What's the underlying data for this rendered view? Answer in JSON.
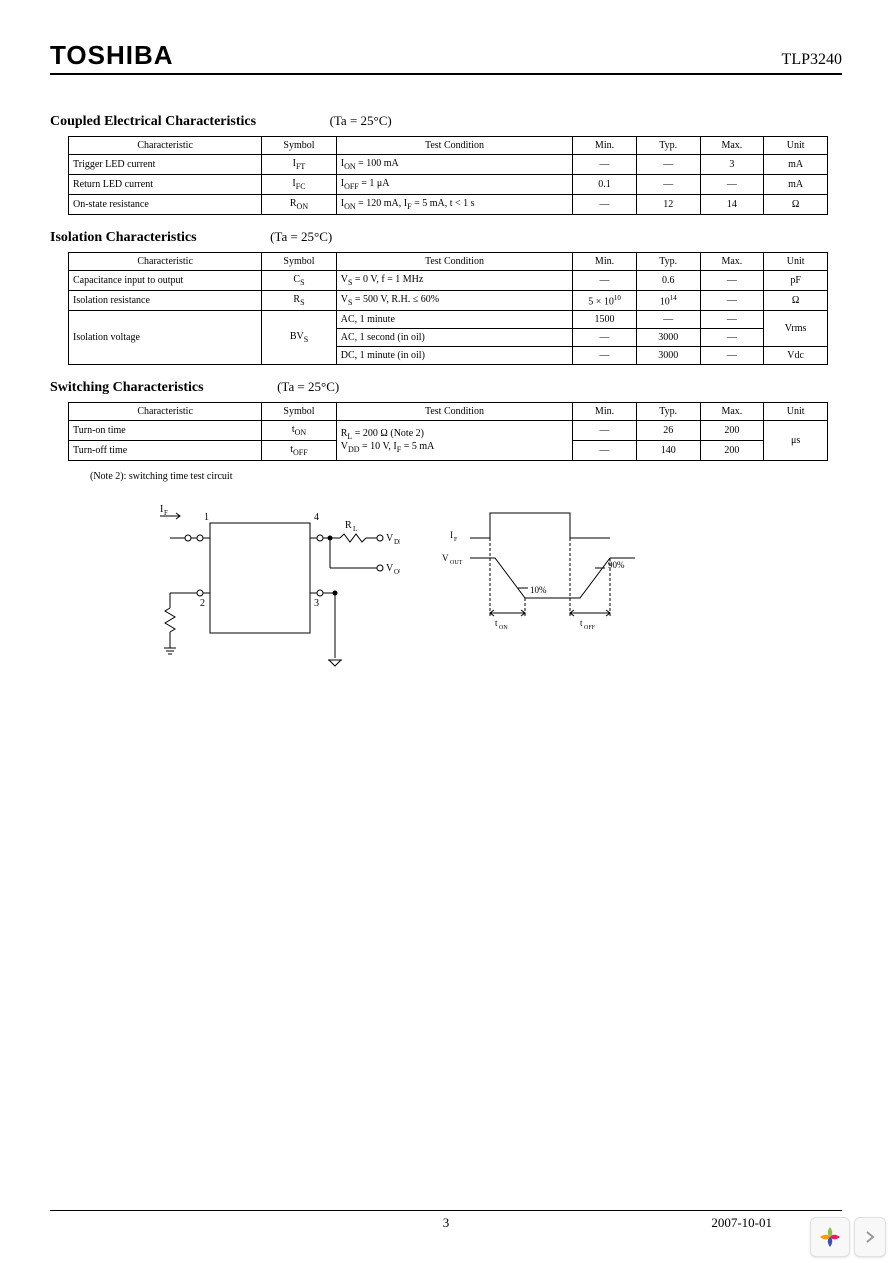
{
  "header": {
    "brand": "TOSHIBA",
    "part": "TLP3240"
  },
  "footer": {
    "page": "3",
    "date": "2007-10-01"
  },
  "section1": {
    "title": "Coupled Electrical Characteristics",
    "ta": "(Ta  = 25°C)",
    "headers": [
      "Characteristic",
      "Symbol",
      "Test    Condition",
      "Min.",
      "Typ.",
      "Max.",
      "Unit"
    ],
    "rows": [
      {
        "char": "Trigger LED current",
        "sym_html": "I<sub>FT</sub>",
        "cond_html": "I<sub>ON</sub>  = 100 mA",
        "min": "―",
        "typ": "―",
        "max": "3",
        "unit": "mA"
      },
      {
        "char": "Return LED current",
        "sym_html": "I<sub>FC</sub>",
        "cond_html": "I<sub>OFF</sub>  = 1 μA",
        "min": "0.1",
        "typ": "―",
        "max": "―",
        "unit": "mA"
      },
      {
        "char": "On-state resistance",
        "sym_html": "R<sub>ON</sub>",
        "cond_html": "I<sub>ON</sub>  = 120 mA, I<sub>F</sub> = 5 mA, t < 1 s",
        "min": "―",
        "typ": "12",
        "max": "14",
        "unit": "Ω"
      }
    ]
  },
  "section2": {
    "title": "Isolation Characteristics",
    "ta": "(Ta  = 25°C)",
    "headers": [
      "Characteristic",
      "Symbol",
      "Test    Condition",
      "Min.",
      "Typ.",
      "Max.",
      "Unit"
    ],
    "rows": [
      {
        "char": "Capacitance input to output",
        "sym_html": "C<sub>S</sub>",
        "cond_html": "V<sub>S</sub> = 0 V, f = 1 MHz",
        "min": "―",
        "typ": "0.6",
        "max": "―",
        "unit": "pF"
      },
      {
        "char": "Isolation resistance",
        "sym_html": "R<sub>S</sub>",
        "cond_html": "V<sub>S</sub> = 500 V, R.H. ≤ 60%",
        "min": "5 × 10<sup>10</sup>",
        "typ": "10<sup>14</sup>",
        "max": "―",
        "unit": "Ω"
      },
      {
        "char": "Isolation voltage",
        "sym_html": "BV<sub>S</sub>",
        "subrows": [
          {
            "cond": "AC, 1 minute",
            "min": "1500",
            "typ": "―",
            "max": "―",
            "unit": "Vrms"
          },
          {
            "cond": "AC, 1 second (in oil)",
            "min": "―",
            "typ": "3000",
            "max": "―",
            "unit": ""
          },
          {
            "cond": "DC, 1 minute (in oil)",
            "min": "―",
            "typ": "3000",
            "max": "―",
            "unit": "Vdc"
          }
        ]
      }
    ]
  },
  "section3": {
    "title": "Switching Characteristics",
    "ta": "(Ta  = 25°C)",
    "headers": [
      "Characteristic",
      "Symbol",
      "Test    Condition",
      "Min.",
      "Typ.",
      "Max.",
      "Unit"
    ],
    "cond_html": "R<sub>L</sub> = 200 Ω (Note 2)<br>V<sub>DD</sub> = 10 V, I<sub>F</sub> = 5 mA",
    "rows": [
      {
        "char": "Turn-on time",
        "sym_html": "t<sub>ON</sub>",
        "min": "―",
        "typ": "26",
        "max": "200",
        "unit": "μs"
      },
      {
        "char": "Turn-off time",
        "sym_html": "t<sub>OFF</sub>",
        "min": "―",
        "typ": "140",
        "max": "200",
        "unit": ""
      }
    ]
  },
  "note2": "(Note 2): switching time test circuit",
  "circuit_labels": {
    "if": "IF",
    "pin1": "1",
    "pin2": "2",
    "pin3": "3",
    "pin4": "4",
    "rl": "RL",
    "vdd": "VDD",
    "vout": "VOUT"
  },
  "timing_labels": {
    "if": "IF",
    "vout": "VOUT",
    "p10": "10%",
    "p90": "90%",
    "ton": "tON",
    "toff": "tOFF"
  }
}
